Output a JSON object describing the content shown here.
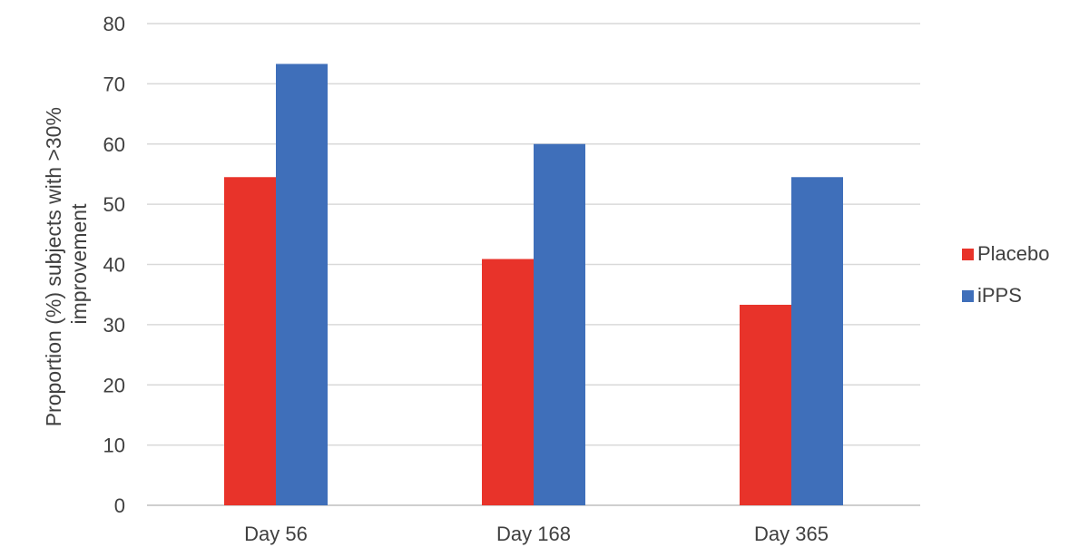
{
  "chart_data": {
    "type": "bar",
    "categories": [
      "Day 56",
      "Day 168",
      "Day 365"
    ],
    "series": [
      {
        "name": "Placebo",
        "color": "#e8332a",
        "values": [
          54.5,
          40.9,
          33.3
        ]
      },
      {
        "name": "iPPS",
        "color": "#3f6fba",
        "values": [
          73.3,
          60.0,
          54.5
        ]
      }
    ],
    "ylabel": "Proportion (%) subjects  with >30% improvement",
    "ylabel_lines": [
      "Proportion (%) subjects  with >30%",
      "improvement"
    ],
    "xlabel": "",
    "ylim": [
      0,
      80
    ],
    "yticks": [
      0,
      10,
      20,
      30,
      40,
      50,
      60,
      70,
      80
    ],
    "grid": true,
    "legend_position": "right"
  }
}
